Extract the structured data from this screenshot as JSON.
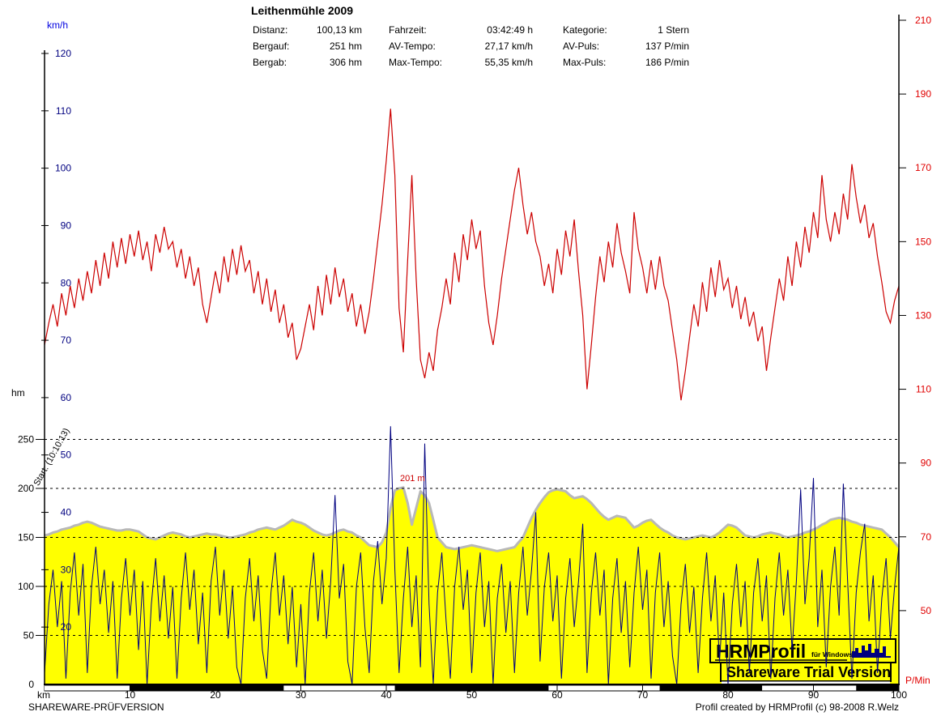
{
  "header": {
    "title": "Leithenmühle 2009",
    "stats": [
      {
        "label": "Distanz:",
        "value": "100,13 km"
      },
      {
        "label": "Fahrzeit:",
        "value": "03:42:49 h"
      },
      {
        "label": "Kategorie:",
        "value": "1 Stern"
      },
      {
        "label": "Bergauf:",
        "value": "251 hm"
      },
      {
        "label": "AV-Tempo:",
        "value": "27,17 km/h"
      },
      {
        "label": "AV-Puls:",
        "value": "137 P/min"
      },
      {
        "label": "Bergab:",
        "value": "306 hm"
      },
      {
        "label": "Max-Tempo:",
        "value": "55,35 km/h"
      },
      {
        "label": "Max-Puls:",
        "value": "186 P/min"
      }
    ]
  },
  "axes": {
    "speed": {
      "unit": "km/h",
      "ticks": [
        120,
        110,
        100,
        90,
        80,
        70,
        60,
        50,
        40,
        30,
        20
      ],
      "color": "#000080",
      "unit_color": "#0000e0"
    },
    "elevation": {
      "unit": "hm",
      "ticks": [
        250,
        200,
        150,
        100,
        50,
        0
      ],
      "gridlines": [
        250,
        200,
        150,
        100,
        50
      ],
      "color": "#000000"
    },
    "pulse": {
      "unit": "P/Min",
      "ticks": [
        210,
        190,
        170,
        150,
        130,
        110,
        90,
        70,
        50
      ],
      "color": "#e00000"
    },
    "x": {
      "unit": "km",
      "ticks": [
        10,
        20,
        30,
        40,
        50,
        60,
        70,
        80,
        90,
        100
      ]
    }
  },
  "annotations": {
    "start_time": "Start: (10:10:13)",
    "max_elevation": "201 m"
  },
  "logo": {
    "name": "HRMProfil",
    "sub": "für Windows",
    "trial": "Shareware Trial  Version"
  },
  "footer": {
    "left": "SHAREWARE-PRÜFVERSION",
    "right": "Profil created by HRMProfil (c) 98-2008 R.Welz"
  },
  "colors": {
    "heart_rate": "#cc0000",
    "speed": "#000080",
    "elevation_fill": "#ffff00",
    "elevation_outline": "#b8b8b8",
    "pulse_text": "#e00000",
    "speed_text": "#000080"
  },
  "chart_data": {
    "type": "line",
    "title": "Leithenmühle 2009",
    "x_axis": {
      "label": "km",
      "min": 0,
      "max": 100,
      "tick_step": 10,
      "sample_step_km": 0.5
    },
    "y_axes": [
      {
        "id": "speed",
        "label": "km/h",
        "min": 10,
        "max": 120,
        "side": "left"
      },
      {
        "id": "elevation",
        "label": "hm",
        "min": 0,
        "max": 260,
        "side": "left",
        "gridlines": [
          50,
          100,
          150,
          200,
          250
        ]
      },
      {
        "id": "pulse",
        "label": "P/Min",
        "min": 30,
        "max": 210,
        "side": "right"
      }
    ],
    "max_elevation_m": 201,
    "max_elevation_km": 42,
    "series": [
      {
        "name": "heart-rate",
        "axis": "pulse",
        "style": "line",
        "color": "#cc0000",
        "values": [
          122,
          128,
          133,
          127,
          136,
          130,
          138,
          132,
          140,
          134,
          142,
          136,
          145,
          138,
          147,
          140,
          150,
          143,
          151,
          144,
          152,
          146,
          153,
          145,
          150,
          142,
          152,
          147,
          154,
          148,
          150,
          143,
          148,
          140,
          146,
          138,
          143,
          133,
          128,
          135,
          142,
          136,
          146,
          139,
          148,
          141,
          149,
          142,
          145,
          136,
          142,
          133,
          140,
          131,
          137,
          128,
          133,
          124,
          128,
          118,
          121,
          127,
          133,
          126,
          138,
          130,
          141,
          133,
          143,
          135,
          140,
          131,
          136,
          127,
          133,
          125,
          131,
          140,
          150,
          160,
          172,
          186,
          168,
          132,
          120,
          145,
          168,
          140,
          118,
          113,
          120,
          115,
          126,
          132,
          140,
          133,
          147,
          139,
          152,
          145,
          156,
          148,
          153,
          138,
          128,
          122,
          130,
          140,
          148,
          156,
          164,
          170,
          160,
          152,
          158,
          150,
          146,
          138,
          144,
          136,
          148,
          141,
          153,
          146,
          156,
          142,
          130,
          110,
          122,
          135,
          146,
          139,
          150,
          143,
          155,
          147,
          142,
          136,
          158,
          148,
          143,
          136,
          145,
          137,
          146,
          138,
          134,
          126,
          118,
          107,
          115,
          124,
          133,
          127,
          139,
          131,
          143,
          135,
          145,
          137,
          140,
          132,
          138,
          129,
          135,
          127,
          131,
          123,
          127,
          115,
          124,
          132,
          140,
          134,
          146,
          138,
          150,
          143,
          154,
          147,
          158,
          151,
          168,
          156,
          150,
          158,
          152,
          163,
          156,
          171,
          162,
          155,
          160,
          151,
          155,
          146,
          139,
          131,
          128,
          134,
          138
        ]
      },
      {
        "name": "speed",
        "axis": "speed",
        "style": "line",
        "color": "#000080",
        "values": [
          12,
          24,
          30,
          20,
          28,
          11,
          26,
          33,
          22,
          31,
          12,
          27,
          34,
          24,
          30,
          19,
          28,
          11,
          25,
          32,
          22,
          30,
          16,
          28,
          10,
          24,
          32,
          21,
          29,
          18,
          27,
          11,
          25,
          33,
          23,
          30,
          17,
          26,
          12,
          28,
          34,
          22,
          30,
          18,
          27,
          13,
          10,
          25,
          32,
          21,
          29,
          16,
          11,
          26,
          33,
          22,
          29,
          17,
          27,
          13,
          24,
          10,
          26,
          33,
          21,
          30,
          18,
          28,
          43,
          25,
          31,
          14,
          10,
          27,
          33,
          20,
          12,
          28,
          35,
          24,
          32,
          55,
          30,
          12,
          25,
          34,
          20,
          29,
          13,
          52,
          24,
          10,
          26,
          33,
          21,
          11,
          27,
          34,
          23,
          30,
          12,
          26,
          33,
          20,
          28,
          10,
          25,
          31,
          19,
          28,
          12,
          26,
          34,
          22,
          30,
          40,
          14,
          27,
          33,
          21,
          29,
          11,
          25,
          32,
          20,
          28,
          38,
          12,
          26,
          33,
          22,
          30,
          10,
          25,
          32,
          19,
          28,
          13,
          26,
          34,
          23,
          30,
          11,
          26,
          33,
          20,
          28,
          15,
          10,
          24,
          31,
          19,
          27,
          12,
          25,
          33,
          21,
          29,
          14,
          26,
          10,
          24,
          31,
          20,
          28,
          12,
          26,
          32,
          21,
          29,
          11,
          25,
          33,
          22,
          30,
          16,
          28,
          44,
          24,
          32,
          46,
          20,
          30,
          13,
          27,
          34,
          22,
          45,
          28,
          11,
          26,
          33,
          38,
          21,
          29,
          12,
          25,
          32,
          18,
          27,
          34
        ]
      },
      {
        "name": "elevation",
        "axis": "elevation",
        "style": "area",
        "fill": "#ffff00",
        "stroke": "#b8b8b8",
        "values": [
          152,
          153,
          155,
          156,
          158,
          159,
          160,
          162,
          163,
          165,
          166,
          165,
          163,
          161,
          160,
          159,
          158,
          157,
          157,
          158,
          158,
          157,
          156,
          153,
          150,
          149,
          148,
          150,
          152,
          154,
          155,
          154,
          153,
          151,
          150,
          151,
          152,
          153,
          154,
          153,
          153,
          152,
          151,
          150,
          150,
          151,
          152,
          153,
          155,
          156,
          158,
          159,
          160,
          159,
          158,
          160,
          162,
          165,
          168,
          166,
          165,
          163,
          160,
          157,
          155,
          153,
          152,
          153,
          155,
          157,
          158,
          156,
          155,
          152,
          150,
          146,
          142,
          141,
          140,
          145,
          155,
          180,
          198,
          200,
          201,
          185,
          163,
          180,
          197,
          193,
          185,
          168,
          150,
          145,
          140,
          139,
          138,
          139,
          140,
          141,
          142,
          141,
          140,
          139,
          138,
          137,
          136,
          137,
          138,
          139,
          140,
          145,
          150,
          160,
          170,
          178,
          185,
          191,
          196,
          198,
          199,
          198,
          197,
          193,
          190,
          191,
          192,
          189,
          185,
          180,
          175,
          171,
          168,
          170,
          172,
          171,
          170,
          165,
          160,
          162,
          165,
          167,
          168,
          164,
          160,
          157,
          155,
          152,
          150,
          149,
          148,
          149,
          150,
          151,
          152,
          151,
          150,
          152,
          155,
          159,
          163,
          162,
          160,
          156,
          152,
          151,
          150,
          151,
          153,
          154,
          155,
          154,
          153,
          151,
          150,
          151,
          152,
          153,
          155,
          156,
          158,
          160,
          163,
          165,
          168,
          169,
          170,
          169,
          168,
          166,
          165,
          163,
          162,
          161,
          160,
          159,
          158,
          154,
          150,
          145,
          140
        ]
      }
    ],
    "scale_bar_segments": [
      {
        "from": 0,
        "to": 10,
        "color": "#ffffff"
      },
      {
        "from": 10,
        "to": 28,
        "color": "#000000"
      },
      {
        "from": 28,
        "to": 41,
        "color": "#ffffff"
      },
      {
        "from": 41,
        "to": 59,
        "color": "#000000"
      },
      {
        "from": 59,
        "to": 72,
        "color": "#ffffff"
      },
      {
        "from": 72,
        "to": 84,
        "color": "#000000"
      },
      {
        "from": 84,
        "to": 95,
        "color": "#ffffff"
      },
      {
        "from": 95,
        "to": 100,
        "color": "#000000"
      }
    ]
  }
}
